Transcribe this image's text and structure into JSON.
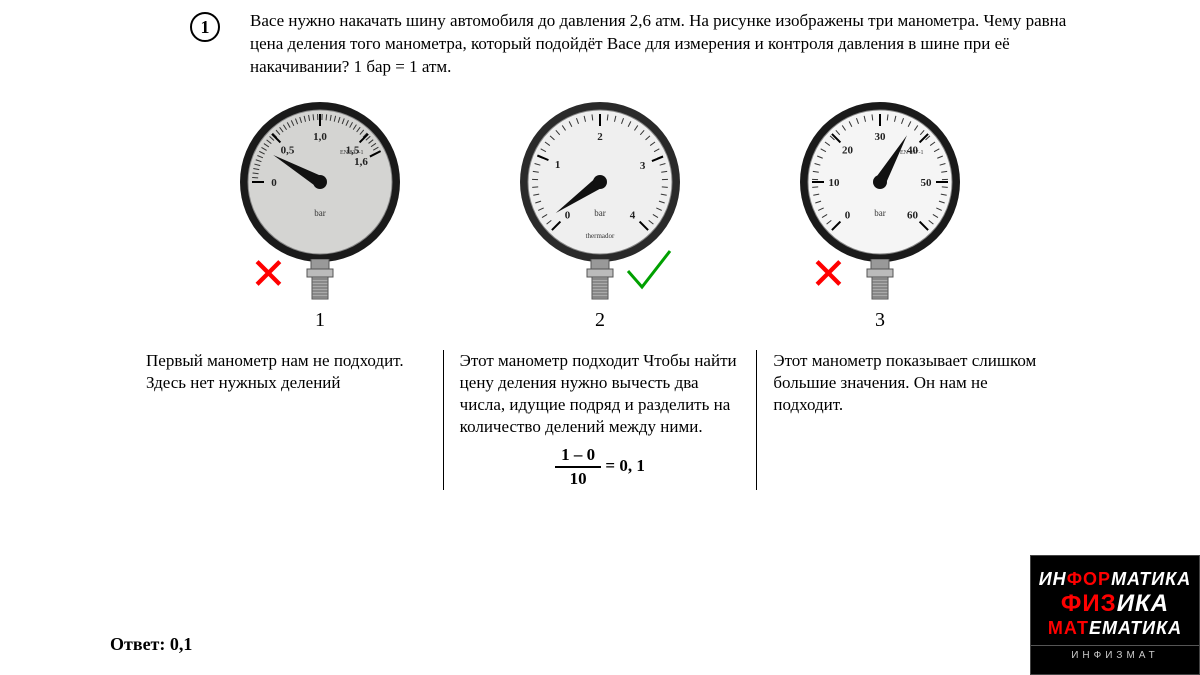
{
  "question": {
    "number": "1",
    "text": "Васе нужно накачать шину автомобиля до давления 2,6 атм. На рисунке изображены три манометра. Чему равна цена деления того манометра, который подойдёт Васе для измерения и контроля давления в шине при её накачивании? 1 бар = 1 атм."
  },
  "gauges": [
    {
      "id": "1",
      "face_fill": "#d4d4d2",
      "face_stroke": "#1a1a1a",
      "stroke_w": 10,
      "unit": "bar",
      "standard": "EN 837-1",
      "labels": [
        {
          "v": "0",
          "a": 180
        },
        {
          "v": "0,5",
          "a": 135
        },
        {
          "v": "1,0",
          "a": 90
        },
        {
          "v": "1,5",
          "a": 45
        },
        {
          "v": "1,6",
          "a": 27
        }
      ],
      "needle_angle": 150,
      "mark": "x",
      "explain": "Первый манометр нам не подходит. Здесь нет нужных делений"
    },
    {
      "id": "2",
      "face_fill": "#efefef",
      "face_stroke": "#2a2a2a",
      "stroke_w": 8,
      "unit": "bar",
      "brand": "thermador",
      "labels": [
        {
          "v": "0",
          "a": 225
        },
        {
          "v": "1",
          "a": 157
        },
        {
          "v": "2",
          "a": 90
        },
        {
          "v": "3",
          "a": 22
        },
        {
          "v": "4",
          "a": -45
        }
      ],
      "needle_angle": 215,
      "mark": "check",
      "explain": "Этот манометр подходит Чтобы найти цену деления нужно вычесть два числа, идущие подряд и разделить на количество делений между ними."
    },
    {
      "id": "3",
      "face_fill": "#f5f5f5",
      "face_stroke": "#1a1a1a",
      "stroke_w": 9,
      "unit": "bar",
      "standard": "EN 837-1",
      "labels": [
        {
          "v": "0",
          "a": 225
        },
        {
          "v": "10",
          "a": 180
        },
        {
          "v": "20",
          "a": 135
        },
        {
          "v": "30",
          "a": 90
        },
        {
          "v": "40",
          "a": 45
        },
        {
          "v": "50",
          "a": 0
        },
        {
          "v": "60",
          "a": -45
        }
      ],
      "needle_angle": 60,
      "mark": "x",
      "explain": "Этот манометр показывает слишком большие значения. Он нам не подходит."
    }
  ],
  "formula": {
    "num": "1 – 0",
    "den": "10",
    "rhs": "= 0, 1"
  },
  "answer_label": "Ответ: 0,1",
  "logo": {
    "line1_pre": "ИН",
    "line1_hl": "ФОР",
    "line1_post": "МАТИКА",
    "line2_pre": "",
    "line2_hl": "ФИЗ",
    "line2_post": "ИКА",
    "line3_pre": "",
    "line3_hl": "МАТ",
    "line3_post": "ЕМАТИКА",
    "sub": "ИНФИЗМАТ"
  },
  "colors": {
    "x": "#ff0000",
    "check": "#00a000"
  }
}
